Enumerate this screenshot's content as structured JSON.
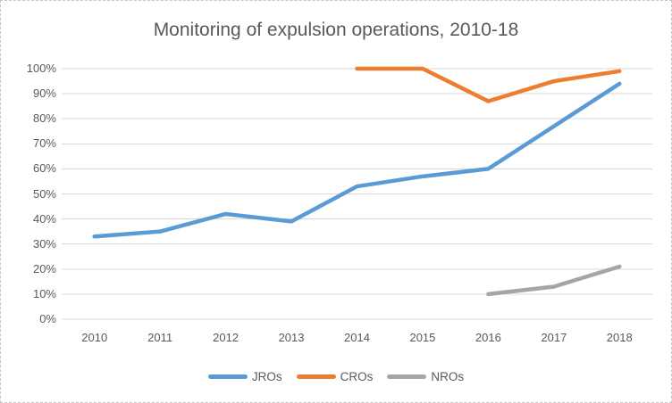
{
  "chart_data": {
    "type": "line",
    "title": "Monitoring of expulsion operations, 2010-18",
    "categories": [
      "2010",
      "2011",
      "2012",
      "2013",
      "2014",
      "2015",
      "2016",
      "2017",
      "2018"
    ],
    "series": [
      {
        "name": "JROs",
        "color": "#5B9BD5",
        "start_index": 0,
        "values": [
          33,
          35,
          42,
          39,
          53,
          57,
          60,
          77,
          94
        ]
      },
      {
        "name": "CROs",
        "color": "#ED7D31",
        "start_index": 4,
        "values": [
          100,
          100,
          87,
          95,
          99
        ]
      },
      {
        "name": "NROs",
        "color": "#A5A5A5",
        "start_index": 6,
        "values": [
          10,
          13,
          21
        ]
      }
    ],
    "y_axis": {
      "min": 0,
      "max": 100,
      "tick_step": 10,
      "ticks": [
        {
          "value": 0,
          "label": "0%"
        },
        {
          "value": 10,
          "label": "10%"
        },
        {
          "value": 20,
          "label": "20%"
        },
        {
          "value": 30,
          "label": "30%"
        },
        {
          "value": 40,
          "label": "40%"
        },
        {
          "value": 50,
          "label": "50%"
        },
        {
          "value": 60,
          "label": "60%"
        },
        {
          "value": 70,
          "label": "70%"
        },
        {
          "value": 80,
          "label": "80%"
        },
        {
          "value": 90,
          "label": "90%"
        },
        {
          "value": 100,
          "label": "100%"
        }
      ]
    },
    "grid": true,
    "gridline_color": "#D9D9D9",
    "text_color": "#595959",
    "legend_position": "bottom",
    "legend_labels": [
      "JROs",
      "CROs",
      "NROs"
    ]
  }
}
